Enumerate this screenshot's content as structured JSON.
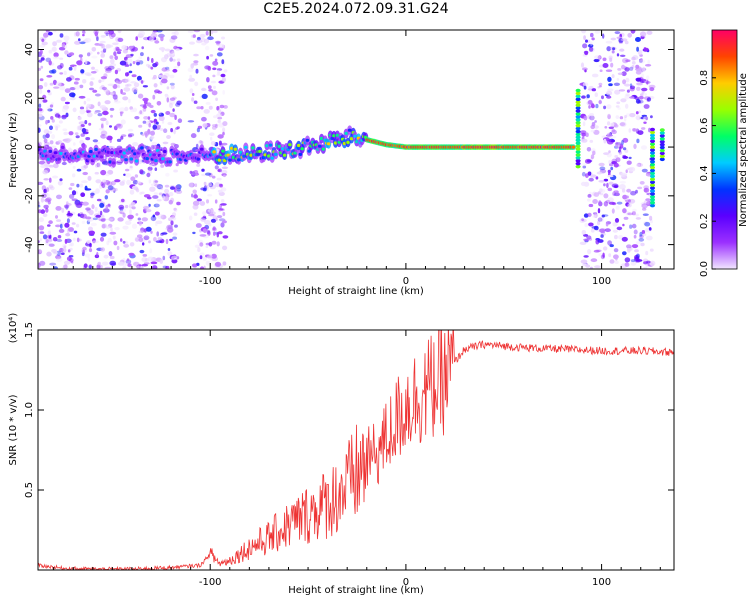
{
  "title": "C2E5.2024.072.09.31.G24",
  "chart_data": [
    {
      "type": "heatmap",
      "title": "C2E5.2024.072.09.31.G24",
      "xlabel": "Height of straight line (km)",
      "ylabel": "Frequency (Hz)",
      "xlim": [
        -188,
        137
      ],
      "ylim": [
        -50,
        48
      ],
      "xticks": [
        -100,
        0,
        100
      ],
      "xtick_labels": [
        "-100",
        "0",
        "100"
      ],
      "yticks": [
        -40,
        -20,
        0,
        20,
        40
      ],
      "ytick_labels": [
        "-40",
        "-20",
        "0",
        "20",
        "40"
      ],
      "colorbar": {
        "label": "Normalized spectral amplitude",
        "range": [
          0,
          1
        ],
        "ticks": [
          0.0,
          0.2,
          0.4,
          0.6,
          0.8
        ],
        "tick_labels": [
          "0.0",
          "0.2",
          "0.4",
          "0.6",
          "0.8"
        ],
        "colors": [
          "#f2e6ff",
          "#9b30ff",
          "#5a00ff",
          "#0033ff",
          "#00ccff",
          "#00ff66",
          "#99ff00",
          "#ffcc00",
          "#ff4400",
          "#ff0066"
        ]
      },
      "ridge": {
        "x": [
          -188,
          -170,
          -150,
          -130,
          -110,
          -95,
          -80,
          -70,
          -60,
          -50,
          -40,
          -30,
          -25,
          -20,
          -15,
          -10,
          0,
          10,
          20,
          40,
          60,
          80,
          85
        ],
        "y": [
          -3,
          -2,
          -4,
          -3,
          -4,
          -3,
          -3,
          -2,
          -1,
          0,
          2,
          4,
          4,
          3,
          2,
          1,
          0,
          0,
          0,
          0,
          0,
          0,
          0
        ]
      },
      "noise_bands_x": [
        [
          -188,
          -115
        ],
        [
          -110,
          -92
        ],
        [
          90,
          126
        ]
      ],
      "features": [
        {
          "x": 88,
          "y_range": [
            -8,
            24
          ]
        },
        {
          "x": 126,
          "y_range": [
            -24,
            8
          ]
        },
        {
          "x": 131,
          "y_range": [
            -5,
            8
          ]
        }
      ]
    },
    {
      "type": "line",
      "xlabel": "Height of straight line (km)",
      "ylabel": "SNR (10 * v/v)",
      "y_multiplier_label": "(x10⁴)",
      "xlim": [
        -188,
        137
      ],
      "ylim": [
        0,
        15000
      ],
      "xticks": [
        -100,
        0,
        100
      ],
      "xtick_labels": [
        "-100",
        "0",
        "100"
      ],
      "yticks": [
        5000,
        10000,
        15000
      ],
      "ytick_labels": [
        "0.5",
        "1.0",
        "1.5"
      ],
      "series": [
        {
          "color": "#ee3333",
          "x": [
            -188,
            -175,
            -160,
            -140,
            -120,
            -105,
            -100,
            -95,
            -90,
            -80,
            -70,
            -60,
            -50,
            -40,
            -30,
            -20,
            -15,
            -10,
            -5,
            0,
            10,
            20,
            25,
            30,
            40,
            50,
            60,
            80,
            100,
            120,
            137
          ],
          "y": [
            300,
            100,
            50,
            60,
            150,
            300,
            1000,
            400,
            600,
            1400,
            2000,
            2800,
            3500,
            4200,
            5200,
            6800,
            7300,
            8200,
            9300,
            10300,
            11200,
            12000,
            13000,
            13800,
            14100,
            14000,
            13900,
            13800,
            13700,
            13700,
            13600
          ]
        }
      ]
    }
  ]
}
